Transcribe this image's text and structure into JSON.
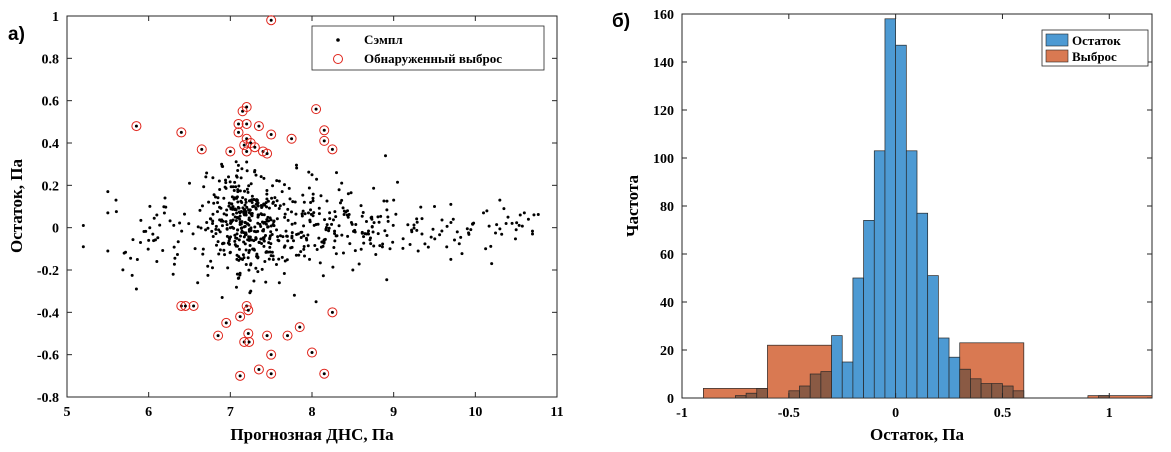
{
  "chart_data": [
    {
      "panel_label": "а)",
      "type": "scatter",
      "xlabel": "Прогнозная ДНС, Па",
      "ylabel": "Остаток, Па",
      "xlim": [
        5,
        11
      ],
      "ylim": [
        -0.8,
        1
      ],
      "xticks": [
        "5",
        "6",
        "7",
        "8",
        "9",
        "10",
        "11"
      ],
      "yticks": [
        "-0.8",
        "-0.6",
        "-0.4",
        "-0.2",
        "0",
        "0.2",
        "0.4",
        "0.6",
        "0.8",
        "1"
      ],
      "legend_position": "top-right",
      "series": [
        {
          "name": "Сэмпл",
          "marker": "dot",
          "color": "#000000",
          "cloud": [
            {
              "cx": 7.15,
              "cy": 0.02,
              "sx": 0.22,
              "sy": 0.13,
              "n": 300
            },
            {
              "cx": 7.6,
              "cy": 0.02,
              "sx": 0.4,
              "sy": 0.11,
              "n": 160
            },
            {
              "cx": 8.4,
              "cy": 0.01,
              "sx": 0.35,
              "sy": 0.08,
              "n": 90
            },
            {
              "cx": 9.6,
              "cy": 0.0,
              "sx": 0.6,
              "sy": 0.06,
              "n": 70
            },
            {
              "cx": 6.2,
              "cy": -0.02,
              "sx": 0.35,
              "sy": 0.09,
              "n": 40
            }
          ],
          "points": [
            {
              "x": 5.2,
              "y": -0.09
            },
            {
              "x": 5.2,
              "y": 0.01
            },
            {
              "x": 5.5,
              "y": 0.17
            },
            {
              "x": 5.5,
              "y": 0.07
            },
            {
              "x": 5.5,
              "y": -0.11
            },
            {
              "x": 5.6,
              "y": 0.13
            },
            {
              "x": 5.7,
              "y": -0.12
            },
            {
              "x": 5.85,
              "y": -0.29
            },
            {
              "x": 5.9,
              "y": -0.07
            },
            {
              "x": 6.0,
              "y": -0.06
            },
            {
              "x": 6.1,
              "y": 0.06
            },
            {
              "x": 6.1,
              "y": -0.16
            },
            {
              "x": 6.2,
              "y": 0.14
            },
            {
              "x": 6.3,
              "y": -0.22
            },
            {
              "x": 6.5,
              "y": 0.21
            },
            {
              "x": 6.6,
              "y": -0.26
            },
            {
              "x": 6.7,
              "y": 0.24
            },
            {
              "x": 6.9,
              "y": 0.29
            },
            {
              "x": 6.9,
              "y": -0.33
            },
            {
              "x": 7.2,
              "y": 0.31
            },
            {
              "x": 7.25,
              "y": -0.3
            },
            {
              "x": 7.3,
              "y": 0.27
            },
            {
              "x": 7.6,
              "y": 0.22
            },
            {
              "x": 7.6,
              "y": -0.26
            },
            {
              "x": 8.0,
              "y": 0.25
            },
            {
              "x": 8.05,
              "y": -0.35
            },
            {
              "x": 8.3,
              "y": 0.26
            },
            {
              "x": 8.5,
              "y": -0.2
            },
            {
              "x": 8.9,
              "y": 0.34
            },
            {
              "x": 9.0,
              "y": 0.13
            },
            {
              "x": 9.3,
              "y": -0.11
            },
            {
              "x": 9.5,
              "y": 0.1
            },
            {
              "x": 9.7,
              "y": 0.11
            },
            {
              "x": 9.7,
              "y": -0.15
            },
            {
              "x": 10.1,
              "y": 0.07
            },
            {
              "x": 10.2,
              "y": -0.17
            },
            {
              "x": 10.3,
              "y": 0.13
            },
            {
              "x": 10.35,
              "y": 0.09
            },
            {
              "x": 10.4,
              "y": 0.05
            },
            {
              "x": 10.45,
              "y": 0.02
            },
            {
              "x": 10.5,
              "y": -0.01
            },
            {
              "x": 10.55,
              "y": 0.06
            },
            {
              "x": 10.6,
              "y": 0.07
            },
            {
              "x": 10.65,
              "y": 0.04
            },
            {
              "x": 10.7,
              "y": -0.03
            }
          ]
        },
        {
          "name": "Обнаруженный выброс",
          "marker": "circle",
          "color": "#e0241b",
          "points": [
            {
              "x": 5.85,
              "y": 0.48
            },
            {
              "x": 6.4,
              "y": 0.45
            },
            {
              "x": 6.4,
              "y": -0.37
            },
            {
              "x": 6.45,
              "y": -0.37
            },
            {
              "x": 6.55,
              "y": -0.37
            },
            {
              "x": 6.65,
              "y": 0.37
            },
            {
              "x": 6.85,
              "y": -0.51
            },
            {
              "x": 6.95,
              "y": -0.45
            },
            {
              "x": 7.0,
              "y": 0.36
            },
            {
              "x": 7.1,
              "y": 0.49
            },
            {
              "x": 7.1,
              "y": 0.45
            },
            {
              "x": 7.12,
              "y": -0.42
            },
            {
              "x": 7.12,
              "y": -0.7
            },
            {
              "x": 7.15,
              "y": 0.55
            },
            {
              "x": 7.17,
              "y": 0.39
            },
            {
              "x": 7.17,
              "y": -0.54
            },
            {
              "x": 7.2,
              "y": 0.57
            },
            {
              "x": 7.2,
              "y": 0.49
            },
            {
              "x": 7.2,
              "y": 0.42
            },
            {
              "x": 7.2,
              "y": 0.36
            },
            {
              "x": 7.2,
              "y": -0.37
            },
            {
              "x": 7.22,
              "y": -0.39
            },
            {
              "x": 7.22,
              "y": -0.5
            },
            {
              "x": 7.23,
              "y": -0.54
            },
            {
              "x": 7.25,
              "y": 0.4
            },
            {
              "x": 7.3,
              "y": 0.38
            },
            {
              "x": 7.35,
              "y": 0.48
            },
            {
              "x": 7.35,
              "y": -0.67
            },
            {
              "x": 7.4,
              "y": 0.36
            },
            {
              "x": 7.45,
              "y": 0.35
            },
            {
              "x": 7.45,
              "y": -0.51
            },
            {
              "x": 7.5,
              "y": 0.98
            },
            {
              "x": 7.5,
              "y": 0.44
            },
            {
              "x": 7.5,
              "y": -0.6
            },
            {
              "x": 7.5,
              "y": -0.69
            },
            {
              "x": 7.7,
              "y": -0.51
            },
            {
              "x": 7.75,
              "y": 0.42
            },
            {
              "x": 7.85,
              "y": -0.47
            },
            {
              "x": 8.0,
              "y": -0.59
            },
            {
              "x": 8.05,
              "y": 0.56
            },
            {
              "x": 8.15,
              "y": 0.46
            },
            {
              "x": 8.15,
              "y": 0.41
            },
            {
              "x": 8.15,
              "y": -0.69
            },
            {
              "x": 8.25,
              "y": 0.37
            },
            {
              "x": 8.25,
              "y": -0.4
            }
          ]
        }
      ]
    },
    {
      "panel_label": "б)",
      "type": "bar",
      "xlabel": "Остаток, Па",
      "ylabel": "Частота",
      "xlim": [
        -1,
        1.2
      ],
      "ylim": [
        0,
        160
      ],
      "xticks": [
        "-1",
        "-0.5",
        "0",
        "0.5",
        "1"
      ],
      "yticks": [
        "0",
        "20",
        "40",
        "60",
        "80",
        "100",
        "120",
        "140",
        "160"
      ],
      "legend_position": "top-right",
      "series": [
        {
          "name": "Остаток",
          "color": "#4d9ad3",
          "bins": [
            {
              "x0": -0.35,
              "x1": -0.3,
              "value": 1
            },
            {
              "x0": -0.3,
              "x1": -0.25,
              "value": 26
            },
            {
              "x0": -0.25,
              "x1": -0.2,
              "value": 15
            },
            {
              "x0": -0.2,
              "x1": -0.15,
              "value": 50
            },
            {
              "x0": -0.15,
              "x1": -0.1,
              "value": 74
            },
            {
              "x0": -0.1,
              "x1": -0.05,
              "value": 103
            },
            {
              "x0": -0.05,
              "x1": 0,
              "value": 158
            },
            {
              "x0": 0,
              "x1": 0.05,
              "value": 147
            },
            {
              "x0": 0.05,
              "x1": 0.1,
              "value": 103
            },
            {
              "x0": 0.1,
              "x1": 0.15,
              "value": 77
            },
            {
              "x0": 0.15,
              "x1": 0.2,
              "value": 51
            },
            {
              "x0": 0.2,
              "x1": 0.25,
              "value": 25
            },
            {
              "x0": 0.25,
              "x1": 0.3,
              "value": 17
            },
            {
              "x0": 0.3,
              "x1": 0.35,
              "value": 1
            }
          ]
        },
        {
          "name": "Выброс",
          "color": "#d97952",
          "bins": [
            {
              "x0": -0.9,
              "x1": -0.6,
              "value": 4
            },
            {
              "x0": -0.6,
              "x1": -0.3,
              "value": 22
            },
            {
              "x0": 0.3,
              "x1": 0.6,
              "value": 23
            },
            {
              "x0": 0.9,
              "x1": 1.2,
              "value": 1
            }
          ]
        },
        {
          "name": "",
          "role": "overlap",
          "color": "#8a5a44",
          "bins": [
            {
              "x0": -0.75,
              "x1": -0.7,
              "value": 1
            },
            {
              "x0": -0.7,
              "x1": -0.65,
              "value": 2
            },
            {
              "x0": -0.65,
              "x1": -0.6,
              "value": 4
            },
            {
              "x0": -0.5,
              "x1": -0.45,
              "value": 3
            },
            {
              "x0": -0.45,
              "x1": -0.4,
              "value": 5
            },
            {
              "x0": -0.4,
              "x1": -0.35,
              "value": 10
            },
            {
              "x0": -0.35,
              "x1": -0.3,
              "value": 11
            },
            {
              "x0": 0.3,
              "x1": 0.35,
              "value": 12
            },
            {
              "x0": 0.35,
              "x1": 0.4,
              "value": 8
            },
            {
              "x0": 0.4,
              "x1": 0.45,
              "value": 6
            },
            {
              "x0": 0.45,
              "x1": 0.5,
              "value": 6
            },
            {
              "x0": 0.5,
              "x1": 0.55,
              "value": 5
            },
            {
              "x0": 0.55,
              "x1": 0.6,
              "value": 3
            },
            {
              "x0": 0.95,
              "x1": 1.0,
              "value": 1
            }
          ]
        }
      ]
    }
  ]
}
